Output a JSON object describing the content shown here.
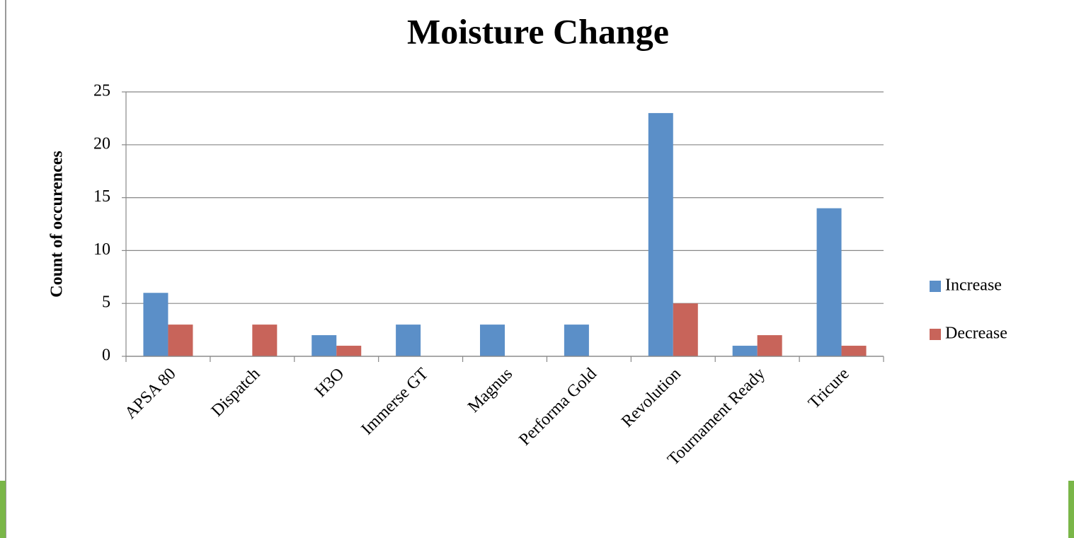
{
  "chart_data": {
    "type": "bar",
    "title": "Moisture Change",
    "y_label": "Count of occurences",
    "categories": [
      "APSA 80",
      "Dispatch",
      "H3O",
      "Immerse GT",
      "Magnus",
      "Performa Gold",
      "Revolution",
      "Tournament Ready",
      "Tricure"
    ],
    "series": [
      {
        "name": "Increase",
        "color": "#5b8fc8",
        "values": [
          6,
          0,
          2,
          3,
          3,
          3,
          23,
          1,
          14
        ]
      },
      {
        "name": "Decrease",
        "color": "#c8645a",
        "values": [
          3,
          3,
          1,
          0,
          0,
          0,
          5,
          2,
          1
        ]
      }
    ],
    "ylim": [
      0,
      25
    ],
    "yticks": [
      0,
      5,
      10,
      15,
      20,
      25
    ],
    "grid": true,
    "legend": "right"
  }
}
